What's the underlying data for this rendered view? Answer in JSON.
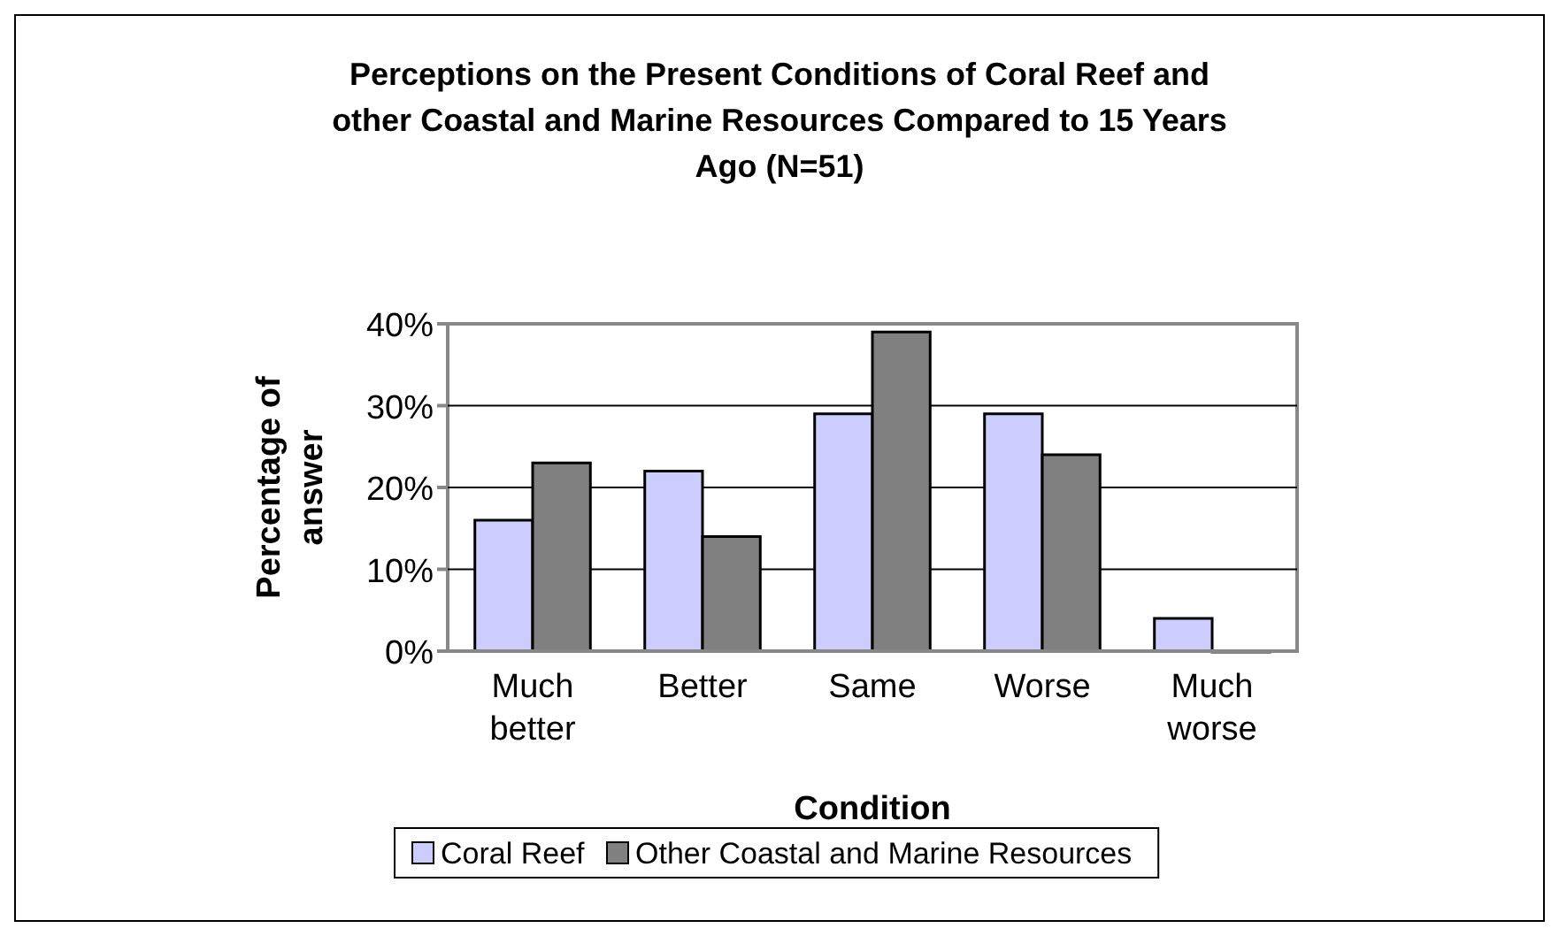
{
  "chart_data": {
    "type": "bar",
    "title": "Perceptions on the Present Conditions of Coral Reef and other Coastal and Marine Resources Compared to 15 Years Ago  (N=51)",
    "xlabel": "Condition",
    "ylabel": "Percentage of answer",
    "categories": [
      "Much better",
      "Better",
      "Same",
      "Worse",
      "Much worse"
    ],
    "series": [
      {
        "name": "Coral Reef",
        "color": "#ccccff",
        "values": [
          16,
          22,
          29,
          29,
          4
        ]
      },
      {
        "name": "Other Coastal and Marine Resources",
        "color": "#808080",
        "values": [
          23,
          14,
          39,
          24,
          0
        ]
      }
    ],
    "ylim": [
      0,
      40
    ],
    "yticks": [
      {
        "value": 0,
        "label": "0%"
      },
      {
        "value": 10,
        "label": "10%"
      },
      {
        "value": 20,
        "label": "20%"
      },
      {
        "value": 30,
        "label": "30%"
      },
      {
        "value": 40,
        "label": "40%"
      }
    ],
    "grid": "y",
    "legend": "bottom"
  }
}
